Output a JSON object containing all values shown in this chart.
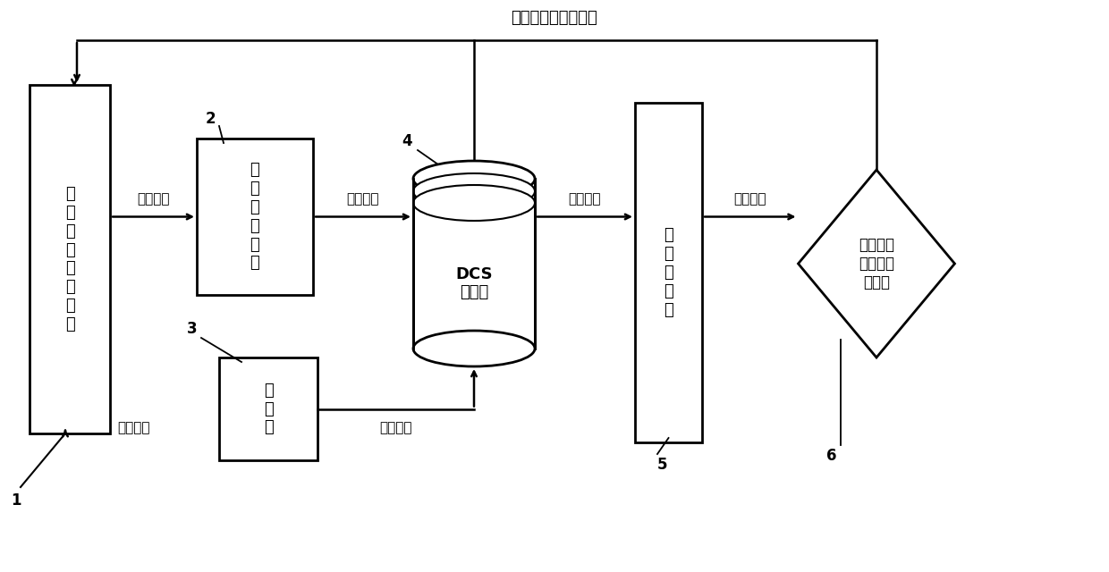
{
  "title": "熔融指数离线化验值",
  "box1_label": "丙\n烯\n聚\n合\n生\n产\n过\n程",
  "box2_label": "现\n场\n智\n能\n仪\n表",
  "box3_label": "控\n制\n站",
  "box4_label": "DCS\n数据库",
  "box5_label": "软\n测\n量\n模\n型",
  "box6_label": "熔融指数\n软测量值\n显示仪",
  "arrow1_label": "易测变量",
  "arrow2_label": "易测变量",
  "arrow3_label": "模型输入",
  "arrow4_label": "模型输出",
  "arrow5_label": "操作变量",
  "arrow6_label": "操作变量",
  "label1": "1",
  "label2": "2",
  "label3": "3",
  "label4": "4",
  "label5": "5",
  "label6": "6",
  "bg_color": "#ffffff",
  "fg_color": "#000000"
}
